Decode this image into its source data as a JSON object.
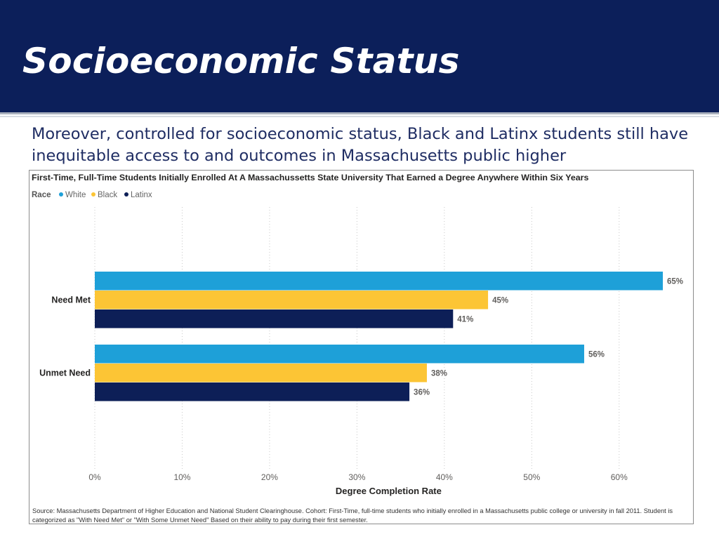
{
  "slide": {
    "title": "Socioeconomic Status",
    "body": "Moreover, controlled for socioeconomic status, Black and Latinx students still have inequitable access to and outcomes in Massachusetts public higher"
  },
  "colors": {
    "header_bg": "#0c1f5a",
    "white_series": "#1ea0d8",
    "black_series": "#fcc535",
    "latinx_series": "#0d1f57"
  },
  "chart_data": {
    "type": "bar",
    "orientation": "horizontal",
    "title": "First-Time, Full-Time Students Initially Enrolled At A Massachussetts State University That Earned a Degree Anywhere Within Six Years",
    "legend_title": "Race",
    "legend_position": "top-left",
    "categories": [
      "Need Met",
      "Unmet Need"
    ],
    "series": [
      {
        "name": "White",
        "color": "#1ea0d8",
        "values": [
          65,
          56
        ]
      },
      {
        "name": "Black",
        "color": "#fcc535",
        "values": [
          45,
          38
        ]
      },
      {
        "name": "Latinx",
        "color": "#0d1f57",
        "values": [
          41,
          36
        ]
      }
    ],
    "data_labels": [
      [
        "65%",
        "56%"
      ],
      [
        "45%",
        "38%"
      ],
      [
        "41%",
        "36%"
      ]
    ],
    "xlabel": "Degree Completion Rate",
    "xlim": [
      0,
      65
    ],
    "xticks": [
      0,
      10,
      20,
      30,
      40,
      50,
      60
    ],
    "xtick_labels": [
      "0%",
      "10%",
      "20%",
      "30%",
      "40%",
      "50%",
      "60%"
    ],
    "grid": "vertical dotted",
    "source": "Source: Massachusetts Department of Higher Education and National Student Clearinghouse. Cohort: First-Time, full-time students who initially enrolled in a Massachusetts public college or university in fall 2011. Student is categorized as \"With Need Met\" or \"With Some Unmet Need\" Based on their ability to pay during their first semester."
  }
}
